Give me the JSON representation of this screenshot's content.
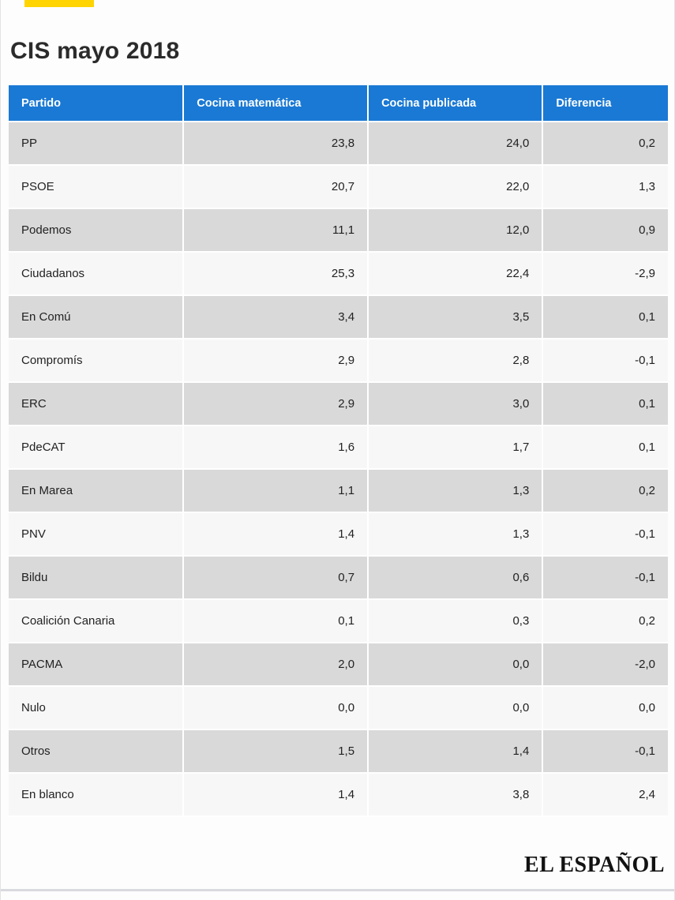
{
  "page": {
    "title": "CIS mayo 2018",
    "brand": "EL ESPAÑOL",
    "accent_color": "#ffd400",
    "header_color": "#1a79d4",
    "row_dark_color": "#d9d9d9",
    "row_light_color": "#f7f7f7"
  },
  "table": {
    "columns": [
      "Partido",
      "Cocina matemática",
      "Cocina publicada",
      "Diferencia"
    ],
    "rows": [
      {
        "partido": "PP",
        "matematica": "23,8",
        "publicada": "24,0",
        "diferencia": "0,2"
      },
      {
        "partido": "PSOE",
        "matematica": "20,7",
        "publicada": "22,0",
        "diferencia": "1,3"
      },
      {
        "partido": "Podemos",
        "matematica": "11,1",
        "publicada": "12,0",
        "diferencia": "0,9"
      },
      {
        "partido": "Ciudadanos",
        "matematica": "25,3",
        "publicada": "22,4",
        "diferencia": "-2,9"
      },
      {
        "partido": "En Comú",
        "matematica": "3,4",
        "publicada": "3,5",
        "diferencia": "0,1"
      },
      {
        "partido": "Compromís",
        "matematica": "2,9",
        "publicada": "2,8",
        "diferencia": "-0,1"
      },
      {
        "partido": "ERC",
        "matematica": "2,9",
        "publicada": "3,0",
        "diferencia": "0,1"
      },
      {
        "partido": "PdeCAT",
        "matematica": "1,6",
        "publicada": "1,7",
        "diferencia": "0,1"
      },
      {
        "partido": "En Marea",
        "matematica": "1,1",
        "publicada": "1,3",
        "diferencia": "0,2"
      },
      {
        "partido": "PNV",
        "matematica": "1,4",
        "publicada": "1,3",
        "diferencia": "-0,1"
      },
      {
        "partido": "Bildu",
        "matematica": "0,7",
        "publicada": "0,6",
        "diferencia": "-0,1"
      },
      {
        "partido": "Coalición Canaria",
        "matematica": "0,1",
        "publicada": "0,3",
        "diferencia": "0,2"
      },
      {
        "partido": "PACMA",
        "matematica": "2,0",
        "publicada": "0,0",
        "diferencia": "-2,0"
      },
      {
        "partido": "Nulo",
        "matematica": "0,0",
        "publicada": "0,0",
        "diferencia": "0,0"
      },
      {
        "partido": "Otros",
        "matematica": "1,5",
        "publicada": "1,4",
        "diferencia": "-0,1"
      },
      {
        "partido": "En blanco",
        "matematica": "1,4",
        "publicada": "3,8",
        "diferencia": "2,4"
      }
    ]
  },
  "chart_data": {
    "type": "table",
    "title": "CIS mayo 2018",
    "columns": [
      "Partido",
      "Cocina matemática",
      "Cocina publicada",
      "Diferencia"
    ],
    "categories": [
      "PP",
      "PSOE",
      "Podemos",
      "Ciudadanos",
      "En Comú",
      "Compromís",
      "ERC",
      "PdeCAT",
      "En Marea",
      "PNV",
      "Bildu",
      "Coalición Canaria",
      "PACMA",
      "Nulo",
      "Otros",
      "En blanco"
    ],
    "series": [
      {
        "name": "Cocina matemática",
        "values": [
          23.8,
          20.7,
          11.1,
          25.3,
          3.4,
          2.9,
          2.9,
          1.6,
          1.1,
          1.4,
          0.7,
          0.1,
          2.0,
          0.0,
          1.5,
          1.4
        ]
      },
      {
        "name": "Cocina publicada",
        "values": [
          24.0,
          22.0,
          12.0,
          22.4,
          3.5,
          2.8,
          3.0,
          1.7,
          1.3,
          1.3,
          0.6,
          0.3,
          0.0,
          0.0,
          1.4,
          3.8
        ]
      },
      {
        "name": "Diferencia",
        "values": [
          0.2,
          1.3,
          0.9,
          -2.9,
          0.1,
          -0.1,
          0.1,
          0.1,
          0.2,
          -0.1,
          -0.1,
          0.2,
          -2.0,
          0.0,
          -0.1,
          2.4
        ]
      }
    ],
    "source": "EL ESPAÑOL"
  }
}
